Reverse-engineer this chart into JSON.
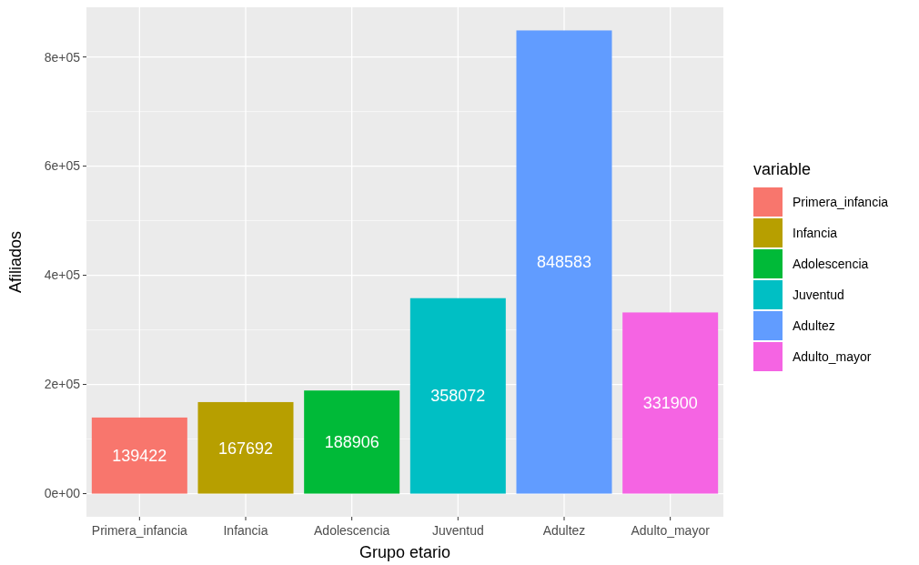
{
  "chart_data": {
    "type": "bar",
    "xlabel": "Grupo etario",
    "ylabel": "Afiliados",
    "legend_title": "variable",
    "categories": [
      "Primera_infancia",
      "Infancia",
      "Adolescencia",
      "Juventud",
      "Adultez",
      "Adulto_mayor"
    ],
    "series": [
      {
        "name": "Primera_infancia",
        "color": "#f8766d",
        "values": [
          139422,
          null,
          null,
          null,
          null,
          null
        ]
      },
      {
        "name": "Infancia",
        "color": "#b79f00",
        "values": [
          null,
          167692,
          null,
          null,
          null,
          null
        ]
      },
      {
        "name": "Adolescencia",
        "color": "#00ba38",
        "values": [
          null,
          null,
          188906,
          null,
          null,
          null
        ]
      },
      {
        "name": "Juventud",
        "color": "#00bfc4",
        "values": [
          null,
          null,
          null,
          358072,
          null,
          null
        ]
      },
      {
        "name": "Adultez",
        "color": "#619cff",
        "values": [
          null,
          null,
          null,
          null,
          848583,
          null
        ]
      },
      {
        "name": "Adulto_mayor",
        "color": "#f564e3",
        "values": [
          null,
          null,
          null,
          null,
          null,
          331900
        ]
      }
    ],
    "ylim": [
      -42429,
      891012
    ],
    "yticks": [
      {
        "value": 0,
        "label": "0e+00"
      },
      {
        "value": 200000,
        "label": "2e+05"
      },
      {
        "value": 400000,
        "label": "4e+05"
      },
      {
        "value": 600000,
        "label": "6e+05"
      },
      {
        "value": 800000,
        "label": "8e+05"
      }
    ],
    "grid": true,
    "legend": "right",
    "data_labels": true
  }
}
